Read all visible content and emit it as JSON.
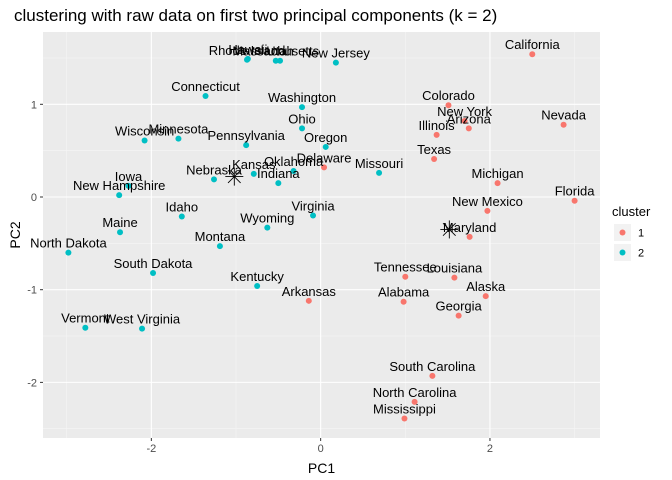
{
  "chart_data": {
    "type": "scatter",
    "title": "clustering with raw data on first two principal components (k = 2)",
    "xlabel": "PC1",
    "ylabel": "PC2",
    "xlim": [
      -3.28,
      3.3
    ],
    "ylim": [
      -2.6,
      1.78
    ],
    "xticks": [
      -2,
      0,
      2
    ],
    "yticks": [
      -2,
      -1,
      0,
      1
    ],
    "grid": true,
    "legend": {
      "title": "cluster",
      "position": "right"
    },
    "series": [
      {
        "name": "1",
        "color": "#F8766D"
      },
      {
        "name": "2",
        "color": "#00BFC4"
      }
    ],
    "points": [
      {
        "label": "California",
        "x": 2.5,
        "y": 1.54,
        "cluster": "1"
      },
      {
        "label": "Nevada",
        "x": 2.87,
        "y": 0.78,
        "cluster": "1"
      },
      {
        "label": "Colorado",
        "x": 1.51,
        "y": 0.99,
        "cluster": "1"
      },
      {
        "label": "New York",
        "x": 1.7,
        "y": 0.82,
        "cluster": "1"
      },
      {
        "label": "Arizona",
        "x": 1.75,
        "y": 0.74,
        "cluster": "1"
      },
      {
        "label": "Illinois",
        "x": 1.37,
        "y": 0.67,
        "cluster": "1"
      },
      {
        "label": "Texas",
        "x": 1.34,
        "y": 0.41,
        "cluster": "1"
      },
      {
        "label": "Delaware",
        "x": 0.04,
        "y": 0.32,
        "cluster": "1"
      },
      {
        "label": "Michigan",
        "x": 2.09,
        "y": 0.15,
        "cluster": "1"
      },
      {
        "label": "Florida",
        "x": 3.0,
        "y": -0.04,
        "cluster": "1"
      },
      {
        "label": "New Mexico",
        "x": 1.97,
        "y": -0.15,
        "cluster": "1"
      },
      {
        "label": "Maryland",
        "x": 1.76,
        "y": -0.43,
        "cluster": "1"
      },
      {
        "label": "Tennessee",
        "x": 1.0,
        "y": -0.86,
        "cluster": "1"
      },
      {
        "label": "Louisiana",
        "x": 1.58,
        "y": -0.87,
        "cluster": "1"
      },
      {
        "label": "Alaska",
        "x": 1.95,
        "y": -1.07,
        "cluster": "1"
      },
      {
        "label": "Alabama",
        "x": 0.98,
        "y": -1.13,
        "cluster": "1"
      },
      {
        "label": "Arkansas",
        "x": -0.14,
        "y": -1.12,
        "cluster": "1"
      },
      {
        "label": "Georgia",
        "x": 1.63,
        "y": -1.28,
        "cluster": "1"
      },
      {
        "label": "South Carolina",
        "x": 1.32,
        "y": -1.93,
        "cluster": "1"
      },
      {
        "label": "North Carolina",
        "x": 1.11,
        "y": -2.21,
        "cluster": "1"
      },
      {
        "label": "Mississippi",
        "x": 0.99,
        "y": -2.39,
        "cluster": "1"
      },
      {
        "label": "Hawaii",
        "x": -0.86,
        "y": 1.49,
        "cluster": "2"
      },
      {
        "label": "Rhode Island",
        "x": -0.87,
        "y": 1.48,
        "cluster": "2"
      },
      {
        "label": "Massachusetts",
        "x": -0.53,
        "y": 1.47,
        "cluster": "2"
      },
      {
        "label": "Utah",
        "x": -0.48,
        "y": 1.47,
        "cluster": "2"
      },
      {
        "label": "New Jersey",
        "x": 0.18,
        "y": 1.45,
        "cluster": "2"
      },
      {
        "label": "Connecticut",
        "x": -1.36,
        "y": 1.09,
        "cluster": "2"
      },
      {
        "label": "Washington",
        "x": -0.22,
        "y": 0.97,
        "cluster": "2"
      },
      {
        "label": "Ohio",
        "x": -0.22,
        "y": 0.74,
        "cluster": "2"
      },
      {
        "label": "Wisconsin",
        "x": -2.08,
        "y": 0.61,
        "cluster": "2"
      },
      {
        "label": "Minnesota",
        "x": -1.68,
        "y": 0.63,
        "cluster": "2"
      },
      {
        "label": "Pennsylvania",
        "x": -0.88,
        "y": 0.56,
        "cluster": "2"
      },
      {
        "label": "Oregon",
        "x": 0.06,
        "y": 0.54,
        "cluster": "2"
      },
      {
        "label": "Missouri",
        "x": 0.69,
        "y": 0.26,
        "cluster": "2"
      },
      {
        "label": "Oklahoma",
        "x": -0.32,
        "y": 0.28,
        "cluster": "2"
      },
      {
        "label": "Kansas",
        "x": -0.79,
        "y": 0.25,
        "cluster": "2"
      },
      {
        "label": "Nebraska",
        "x": -1.26,
        "y": 0.19,
        "cluster": "2"
      },
      {
        "label": "Indiana",
        "x": -0.5,
        "y": 0.15,
        "cluster": "2"
      },
      {
        "label": "Iowa",
        "x": -2.27,
        "y": 0.12,
        "cluster": "2"
      },
      {
        "label": "New Hampshire",
        "x": -2.38,
        "y": 0.02,
        "cluster": "2"
      },
      {
        "label": "Virginia",
        "x": -0.09,
        "y": -0.2,
        "cluster": "2"
      },
      {
        "label": "Idaho",
        "x": -1.64,
        "y": -0.21,
        "cluster": "2"
      },
      {
        "label": "Wyoming",
        "x": -0.63,
        "y": -0.33,
        "cluster": "2"
      },
      {
        "label": "Maine",
        "x": -2.37,
        "y": -0.38,
        "cluster": "2"
      },
      {
        "label": "Montana",
        "x": -1.19,
        "y": -0.53,
        "cluster": "2"
      },
      {
        "label": "North Dakota",
        "x": -2.98,
        "y": -0.6,
        "cluster": "2"
      },
      {
        "label": "South Dakota",
        "x": -1.98,
        "y": -0.82,
        "cluster": "2"
      },
      {
        "label": "Kentucky",
        "x": -0.75,
        "y": -0.96,
        "cluster": "2"
      },
      {
        "label": "Vermont",
        "x": -2.78,
        "y": -1.41,
        "cluster": "2"
      },
      {
        "label": "West Virginia",
        "x": -2.11,
        "y": -1.42,
        "cluster": "2"
      }
    ],
    "centers": [
      {
        "x": -1.02,
        "y": 0.22
      },
      {
        "x": 1.52,
        "y": -0.35
      }
    ]
  }
}
